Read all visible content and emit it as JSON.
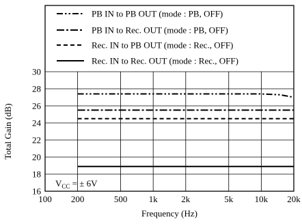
{
  "chart_data": {
    "type": "line",
    "title": "",
    "xlabel": "Frequency (Hz)",
    "ylabel": "Total Gain (dB)",
    "xscale": "log",
    "xlim": [
      100,
      20000
    ],
    "ylim": [
      16,
      30
    ],
    "grid": true,
    "legend_position": "top",
    "x_ticks": [
      100,
      200,
      500,
      1000,
      2000,
      5000,
      10000,
      20000
    ],
    "x_tick_labels": [
      "100",
      "200",
      "500",
      "1k",
      "2k",
      "5k",
      "10k",
      "20k"
    ],
    "y_ticks": [
      16,
      18,
      20,
      22,
      24,
      26,
      28,
      30
    ],
    "y_tick_labels": [
      "16",
      "18",
      "20",
      "22",
      "24",
      "26",
      "28",
      "30"
    ],
    "annotation": {
      "prefix": "V",
      "subscript": "CC",
      "suffix": " = ± 6V"
    },
    "series": [
      {
        "name": "PB IN to PB OUT (mode : PB, OFF)",
        "style": "dash-dot-dot",
        "x": [
          200,
          500,
          1000,
          2000,
          5000,
          10000,
          15000,
          20000
        ],
        "y": [
          27.4,
          27.4,
          27.4,
          27.4,
          27.4,
          27.4,
          27.3,
          27.0
        ]
      },
      {
        "name": "PB IN to Rec. OUT (mode : PB, OFF)",
        "style": "dash-dot",
        "x": [
          200,
          500,
          1000,
          2000,
          5000,
          10000,
          20000
        ],
        "y": [
          25.5,
          25.5,
          25.5,
          25.5,
          25.5,
          25.5,
          25.5
        ]
      },
      {
        "name": "Rec. IN to PB OUT (mode : Rec., OFF)",
        "style": "dash",
        "x": [
          200,
          500,
          1000,
          2000,
          5000,
          10000,
          20000
        ],
        "y": [
          24.5,
          24.5,
          24.5,
          24.5,
          24.5,
          24.5,
          24.5
        ]
      },
      {
        "name": "Rec. IN to Rec. OUT (mode : Rec., OFF)",
        "style": "solid",
        "x": [
          200,
          500,
          1000,
          2000,
          5000,
          10000,
          20000
        ],
        "y": [
          18.9,
          18.9,
          18.9,
          18.9,
          18.9,
          18.9,
          18.9
        ]
      }
    ]
  }
}
